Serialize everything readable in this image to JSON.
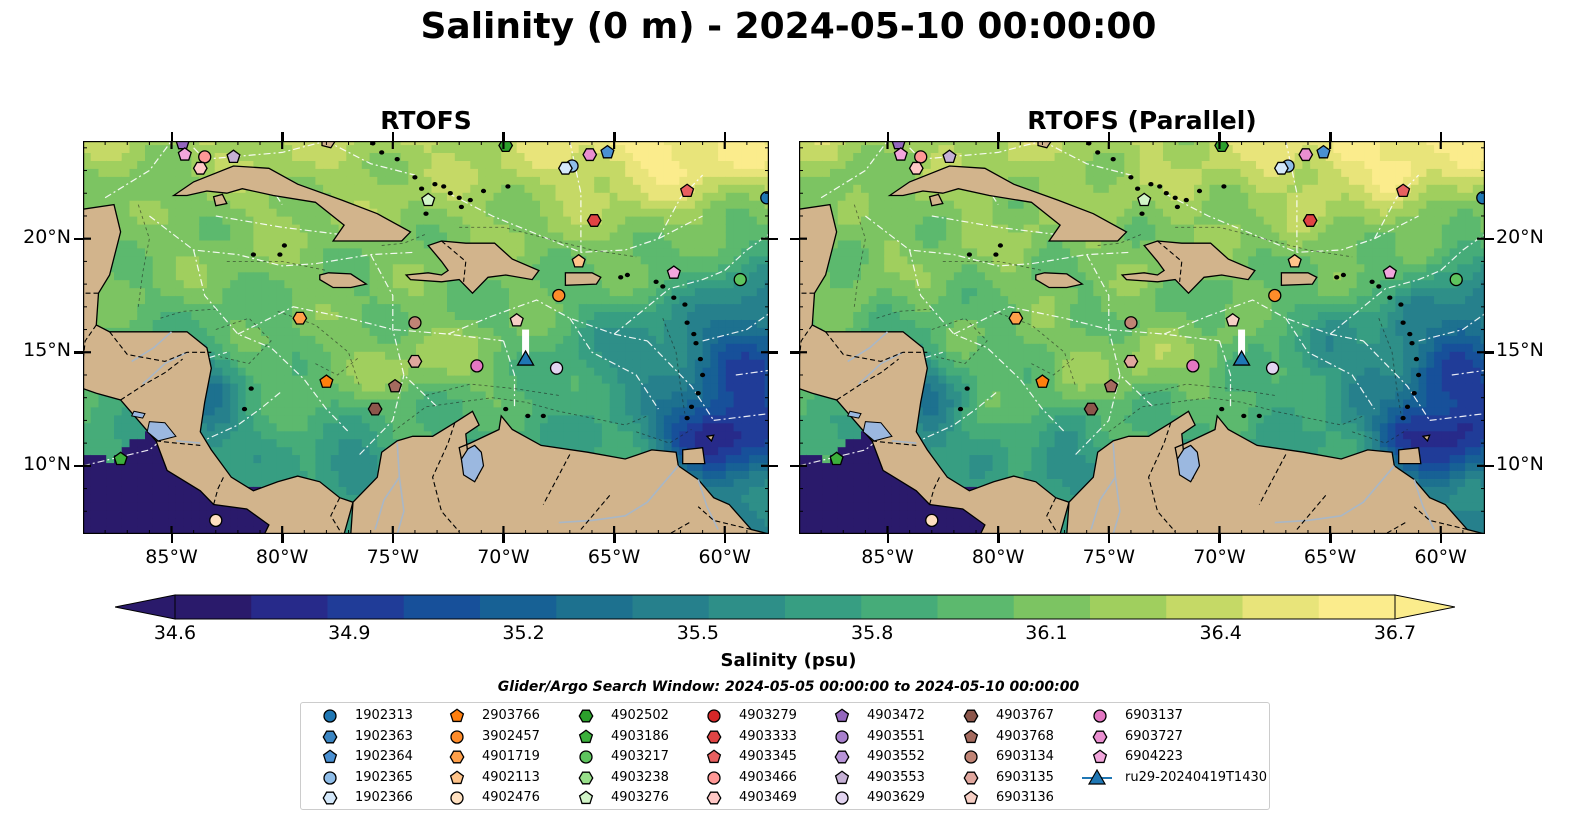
{
  "title": "Salinity (0 m) - 2024-05-10 00:00:00",
  "panels": [
    {
      "title": "RTOFS"
    },
    {
      "title": "RTOFS (Parallel)"
    }
  ],
  "map": {
    "lon_range": [
      -89,
      -58
    ],
    "lat_range": [
      7,
      24.3
    ],
    "x_ticks": [
      "85°W",
      "80°W",
      "75°W",
      "70°W",
      "65°W",
      "60°W"
    ],
    "x_tick_values": [
      -85,
      -80,
      -75,
      -70,
      -65,
      -60
    ],
    "y_ticks": [
      "20°N",
      "15°N",
      "10°N"
    ],
    "y_tick_values": [
      20,
      15,
      10
    ],
    "colors": {
      "land": "#d2b48c",
      "lake": "#9bb8e0",
      "river": "#a9b7c6"
    }
  },
  "colorbar": {
    "label": "Salinity (psu)",
    "min": 34.6,
    "max": 36.7,
    "ticks": [
      "34.6",
      "34.9",
      "35.2",
      "35.5",
      "35.8",
      "36.1",
      "36.4",
      "36.7"
    ],
    "colormap": "haline",
    "colors": [
      "#2a1a6b",
      "#272a8a",
      "#203c98",
      "#17509a",
      "#176195",
      "#1d718f",
      "#26808c",
      "#2e8f88",
      "#379e82",
      "#46ac79",
      "#5cb96e",
      "#7cc462",
      "#a0cf5e",
      "#c5d966",
      "#e8e47a",
      "#fbec8c"
    ]
  },
  "search_window": "Glider/Argo Search Window: 2024-05-05 00:00:00 to 2024-05-10 00:00:00",
  "legend": [
    {
      "label": "1902313",
      "marker": "circle",
      "color": "#1f77b4"
    },
    {
      "label": "1902363",
      "marker": "hexagon",
      "color": "#3b85c2"
    },
    {
      "label": "1902364",
      "marker": "pentagon",
      "color": "#4a90d2"
    },
    {
      "label": "1902365",
      "marker": "circle",
      "color": "#8fbde8"
    },
    {
      "label": "1902366",
      "marker": "hexagon",
      "color": "#d4e8fa"
    },
    {
      "label": "2903766",
      "marker": "pentagon",
      "color": "#ff7f0e"
    },
    {
      "label": "3902457",
      "marker": "circle",
      "color": "#ff8c2a"
    },
    {
      "label": "4901719",
      "marker": "hexagon",
      "color": "#ffa04a"
    },
    {
      "label": "4902113",
      "marker": "pentagon",
      "color": "#ffc48a"
    },
    {
      "label": "4902476",
      "marker": "circle",
      "color": "#ffe0c0"
    },
    {
      "label": "4902502",
      "marker": "hexagon",
      "color": "#2ca02c"
    },
    {
      "label": "4903186",
      "marker": "pentagon",
      "color": "#3cb03c"
    },
    {
      "label": "4903217",
      "marker": "circle",
      "color": "#5ec45e"
    },
    {
      "label": "4903238",
      "marker": "hexagon",
      "color": "#98df8a"
    },
    {
      "label": "4903276",
      "marker": "pentagon",
      "color": "#d2f5c8"
    },
    {
      "label": "4903279",
      "marker": "circle",
      "color": "#d62728"
    },
    {
      "label": "4903333",
      "marker": "hexagon",
      "color": "#e04444"
    },
    {
      "label": "4903345",
      "marker": "pentagon",
      "color": "#e86060"
    },
    {
      "label": "4903466",
      "marker": "circle",
      "color": "#ff9896"
    },
    {
      "label": "4903469",
      "marker": "hexagon",
      "color": "#ffc8c6"
    },
    {
      "label": "4903472",
      "marker": "pentagon",
      "color": "#9467bd"
    },
    {
      "label": "4903551",
      "marker": "circle",
      "color": "#a77fcc"
    },
    {
      "label": "4903552",
      "marker": "hexagon",
      "color": "#b894d8"
    },
    {
      "label": "4903553",
      "marker": "pentagon",
      "color": "#c5b0d5"
    },
    {
      "label": "4903629",
      "marker": "circle",
      "color": "#e2d4f0"
    },
    {
      "label": "4903767",
      "marker": "hexagon",
      "color": "#8c564b"
    },
    {
      "label": "4903768",
      "marker": "pentagon",
      "color": "#a46a5e"
    },
    {
      "label": "6903134",
      "marker": "circle",
      "color": "#c08475"
    },
    {
      "label": "6903135",
      "marker": "hexagon",
      "color": "#e0a79e"
    },
    {
      "label": "6903136",
      "marker": "pentagon",
      "color": "#f6cfc5"
    },
    {
      "label": "6903137",
      "marker": "circle",
      "color": "#e377c2"
    },
    {
      "label": "6903727",
      "marker": "hexagon",
      "color": "#e98fd0"
    },
    {
      "label": "6904223",
      "marker": "pentagon",
      "color": "#f2a6dc"
    },
    {
      "label": "ru29-20240419T1430",
      "marker": "triangle",
      "color": "#1f77b4"
    }
  ],
  "floats": [
    {
      "id": "4903472",
      "lon": -84.5,
      "lat": 24.2
    },
    {
      "id": "6904223",
      "lon": -84.4,
      "lat": 23.7
    },
    {
      "id": "4903466",
      "lon": -83.5,
      "lat": 23.6
    },
    {
      "id": "4903469",
      "lon": -83.7,
      "lat": 23.1
    },
    {
      "id": "4903553",
      "lon": -82.2,
      "lat": 23.6
    },
    {
      "id": "4902502",
      "lon": -69.9,
      "lat": 24.1
    },
    {
      "id": "6903727",
      "lon": -66.1,
      "lat": 23.7
    },
    {
      "id": "1902364",
      "lon": -65.3,
      "lat": 23.8
    },
    {
      "id": "1902365",
      "lon": -66.9,
      "lat": 23.2
    },
    {
      "id": "1902366",
      "lon": -67.2,
      "lat": 23.1
    },
    {
      "id": "4903276",
      "lon": -73.4,
      "lat": 21.7
    },
    {
      "id": "4903345",
      "lon": -61.7,
      "lat": 22.1
    },
    {
      "id": "1902313",
      "lon": -58.1,
      "lat": 21.8
    },
    {
      "id": "4903333",
      "lon": -65.9,
      "lat": 20.8
    },
    {
      "id": "4902113",
      "lon": -66.6,
      "lat": 19.0
    },
    {
      "id": "6904223",
      "lon": -62.3,
      "lat": 18.5
    },
    {
      "id": "4903217",
      "lon": -59.3,
      "lat": 18.2
    },
    {
      "id": "3902457",
      "lon": -67.5,
      "lat": 17.5
    },
    {
      "id": "4901719",
      "lon": -79.2,
      "lat": 16.5
    },
    {
      "id": "6903134",
      "lon": -74.0,
      "lat": 16.3
    },
    {
      "id": "6903136",
      "lon": -69.4,
      "lat": 16.4
    },
    {
      "id": "6903135",
      "lon": -74.0,
      "lat": 14.6
    },
    {
      "id": "6903137",
      "lon": -71.2,
      "lat": 14.4
    },
    {
      "id": "4903629",
      "lon": -67.6,
      "lat": 14.3
    },
    {
      "id": "2903766",
      "lon": -78.0,
      "lat": 13.7
    },
    {
      "id": "4903768",
      "lon": -74.9,
      "lat": 13.5
    },
    {
      "id": "4903767",
      "lon": -75.8,
      "lat": 12.5
    },
    {
      "id": "4903186",
      "lon": -87.3,
      "lat": 10.3
    },
    {
      "id": "4902476",
      "lon": -83.0,
      "lat": 7.6
    }
  ],
  "glider": {
    "id": "ru29-20240419T1430",
    "lon": -69.0,
    "lat": 14.7,
    "track_from": [
      -69.0,
      16.0
    ]
  }
}
